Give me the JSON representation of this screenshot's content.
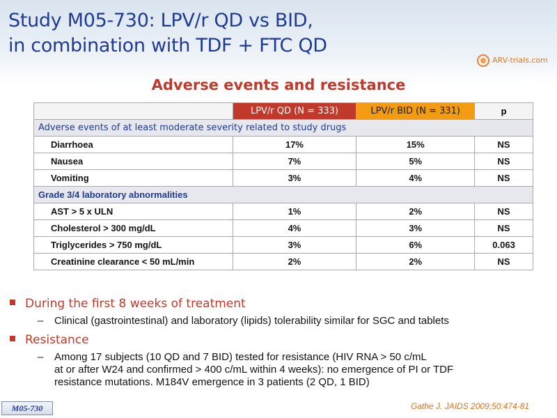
{
  "slide": {
    "title_line1": "Study M05-730: LPV/r QD vs BID,",
    "title_line2": "in combination with TDF + FTC QD",
    "logo_text": "ARV-trials.com",
    "subtitle": "Adverse events and resistance"
  },
  "table": {
    "headers": [
      "",
      "LPV/r QD (N = 333)",
      "LPV/r BID (N = 331)",
      "p"
    ],
    "section1": "Adverse events of at least moderate severity related to study drugs",
    "rows1": [
      [
        "Diarrhoea",
        "17%",
        "15%",
        "NS"
      ],
      [
        "Nausea",
        "7%",
        "5%",
        "NS"
      ],
      [
        "Vomiting",
        "3%",
        "4%",
        "NS"
      ]
    ],
    "section2": "Grade 3/4 laboratory abnormalities",
    "rows2": [
      [
        "AST > 5 x ULN",
        "1%",
        "2%",
        "NS"
      ],
      [
        "Cholesterol > 300 mg/dL",
        "4%",
        "3%",
        "NS"
      ],
      [
        "Triglycerides > 750 mg/dL",
        "3%",
        "6%",
        "0.063"
      ],
      [
        "Creatinine clearance < 50 mL/min",
        "2%",
        "2%",
        "NS"
      ]
    ]
  },
  "bullets": {
    "b1": "During the first 8 weeks of treatment",
    "b1_sub": "Clinical (gastrointestinal) and laboratory (lipids) tolerability similar for SGC and tablets",
    "b2": "Resistance",
    "b2_sub": "Among 17 subjects (10 QD and 7 BID) tested for resistance (HIV RNA > 50 c/mL\nat or after W24 and confirmed > 400 c/mL within 4 weeks): no emergence of PI or TDF\nresistance mutations. M184V emergence in 3 patients (2 QD, 1 BID)",
    "dash": "–"
  },
  "footer": {
    "citation": "Gathe J. JAIDS 2009;50:474-81",
    "tag": "M05-730"
  },
  "colors": {
    "title": "#1f3a93",
    "accent": "#c0392b",
    "bid": "#f39c12"
  }
}
